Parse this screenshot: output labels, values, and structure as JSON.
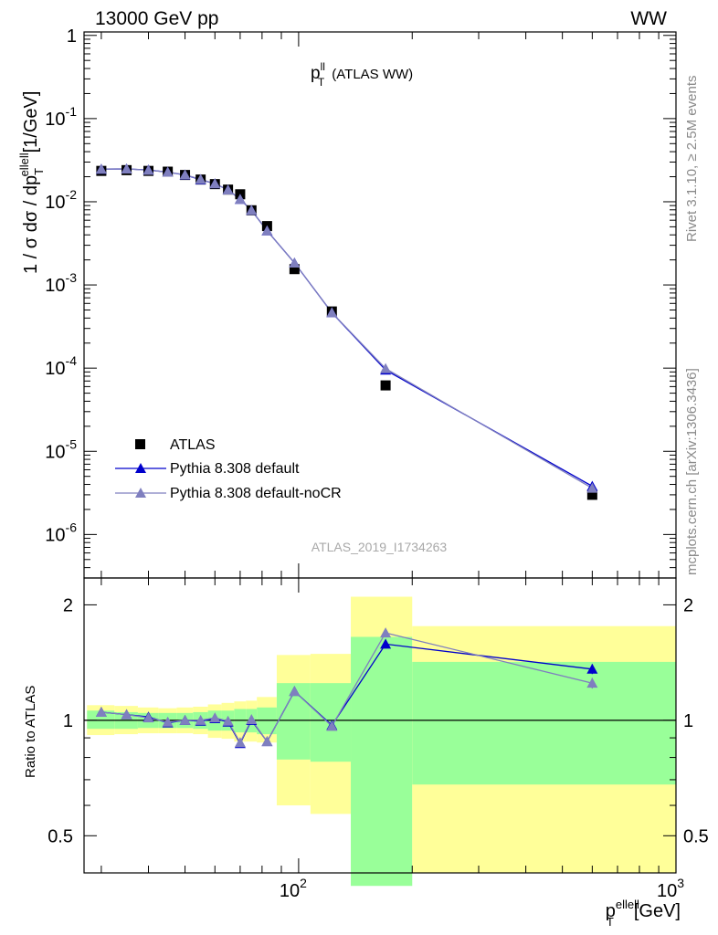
{
  "header": {
    "left": "13000 GeV pp",
    "right": "WW"
  },
  "side_labels": {
    "rivet": "Rivet 3.1.10, ≥ 2.5M events",
    "mcplots": "mcplots.cern.ch [arXiv:1306.3436]"
  },
  "analysis_id": "ATLAS_2019_I1734263",
  "colors": {
    "data": "#000000",
    "default": "#0000cc",
    "nocr": "#7f7fbf",
    "band_outer": "#ffff99",
    "band_inner": "#99ff99"
  },
  "chart_data": [
    {
      "type": "line",
      "title_main": "p",
      "title_sup": "ll",
      "title_sub": "T",
      "title_rest": "(ATLAS WW)",
      "ylabel": "1 / σ dσ / dp",
      "ylabel_sub": "T",
      "ylabel_sup": "ellell",
      "ylabel_unit": "[1/GeV]",
      "yscale": "log",
      "ylim": [
        3e-07,
        1.1
      ],
      "xscale": "log",
      "xlim": [
        27,
        1000
      ],
      "y_tick_labels": [
        "10^-6",
        "10^-5",
        "10^-4",
        "10^-3",
        "10^-2",
        "10^-1",
        "1"
      ],
      "legend_position": "bottom-left",
      "series": [
        {
          "name": "ATLAS",
          "marker": "square",
          "x": [
            30,
            35,
            40,
            45,
            50,
            55,
            60,
            65,
            70,
            75,
            82.5,
            97.5,
            122.5,
            170,
            600
          ],
          "y": [
            0.0235,
            0.024,
            0.0235,
            0.023,
            0.021,
            0.0185,
            0.0163,
            0.014,
            0.0123,
            0.0079,
            0.0051,
            0.00155,
            0.00048,
            6.2e-05,
            3e-06
          ]
        },
        {
          "name": "Pythia 8.308 default",
          "marker": "triangle",
          "x": [
            30,
            35,
            40,
            45,
            50,
            55,
            60,
            65,
            70,
            75,
            82.5,
            97.5,
            122.5,
            170,
            600
          ],
          "y": [
            0.0247,
            0.0248,
            0.0241,
            0.0227,
            0.021,
            0.0184,
            0.0165,
            0.0139,
            0.0107,
            0.0079,
            0.00448,
            0.00184,
            0.000465,
            9.5e-05,
            3.8e-06
          ]
        },
        {
          "name": "Pythia 8.308 default-noCR",
          "marker": "triangle",
          "x": [
            30,
            35,
            40,
            45,
            50,
            55,
            60,
            65,
            70,
            75,
            82.5,
            97.5,
            122.5,
            170,
            600
          ],
          "y": [
            0.0247,
            0.0248,
            0.024,
            0.0227,
            0.0211,
            0.0186,
            0.0165,
            0.0139,
            0.0107,
            0.0079,
            0.00448,
            0.00184,
            0.000465,
            9.9e-05,
            3.6e-06
          ]
        }
      ]
    },
    {
      "type": "line",
      "ylabel": "Ratio to ATLAS",
      "xlabel": "p",
      "xlabel_sub": "T",
      "xlabel_sup": "ellell",
      "xlabel_unit": "[GeV]",
      "yscale": "log",
      "ylim": [
        0.4,
        2.35
      ],
      "xscale": "log",
      "xlim": [
        27,
        1000
      ],
      "y_ticks": [
        0.5,
        1,
        2
      ],
      "y_tick_labels": [
        "0.5",
        "1",
        "2"
      ],
      "x_tick_labels": [
        "10^2",
        "10^3"
      ],
      "bins": [
        {
          "lo": 27.5,
          "hi": 32.5,
          "inner": [
            0.95,
            1.06
          ],
          "outer": [
            0.915,
            1.095
          ]
        },
        {
          "lo": 32.5,
          "hi": 37.5,
          "inner": [
            0.95,
            1.05
          ],
          "outer": [
            0.92,
            1.09
          ]
        },
        {
          "lo": 37.5,
          "hi": 42.5,
          "inner": [
            0.955,
            1.045
          ],
          "outer": [
            0.925,
            1.08
          ]
        },
        {
          "lo": 42.5,
          "hi": 47.5,
          "inner": [
            0.955,
            1.045
          ],
          "outer": [
            0.925,
            1.075
          ]
        },
        {
          "lo": 47.5,
          "hi": 52.5,
          "inner": [
            0.955,
            1.045
          ],
          "outer": [
            0.925,
            1.08
          ]
        },
        {
          "lo": 52.5,
          "hi": 57.5,
          "inner": [
            0.95,
            1.05
          ],
          "outer": [
            0.92,
            1.085
          ]
        },
        {
          "lo": 57.5,
          "hi": 62.5,
          "inner": [
            0.94,
            1.06
          ],
          "outer": [
            0.9,
            1.1
          ]
        },
        {
          "lo": 62.5,
          "hi": 67.5,
          "inner": [
            0.94,
            1.06
          ],
          "outer": [
            0.895,
            1.11
          ]
        },
        {
          "lo": 67.5,
          "hi": 72.5,
          "inner": [
            0.93,
            1.07
          ],
          "outer": [
            0.88,
            1.12
          ]
        },
        {
          "lo": 72.5,
          "hi": 77.5,
          "inner": [
            0.93,
            1.07
          ],
          "outer": [
            0.88,
            1.125
          ]
        },
        {
          "lo": 77.5,
          "hi": 87.5,
          "inner": [
            0.92,
            1.08
          ],
          "outer": [
            0.875,
            1.15
          ]
        },
        {
          "lo": 87.5,
          "hi": 107.5,
          "inner": [
            0.79,
            1.25
          ],
          "outer": [
            0.6,
            1.48
          ]
        },
        {
          "lo": 107.5,
          "hi": 137.5,
          "inner": [
            0.78,
            1.25
          ],
          "outer": [
            0.57,
            1.49
          ]
        },
        {
          "lo": 137.5,
          "hi": 200,
          "inner": [
            0.37,
            1.65
          ],
          "outer": [
            0.35,
            2.1
          ]
        },
        {
          "lo": 200,
          "hi": 1000,
          "inner": [
            0.68,
            1.42
          ],
          "outer": [
            0.4,
            1.76
          ]
        }
      ],
      "series": [
        {
          "name": "Pythia 8.308 default",
          "x": [
            30,
            35,
            40,
            45,
            50,
            55,
            60,
            65,
            70,
            75,
            82.5,
            97.5,
            122.5,
            170,
            600
          ],
          "y": [
            1.05,
            1.035,
            1.02,
            0.985,
            1.0,
            0.995,
            1.01,
            0.99,
            0.87,
            1.0,
            0.88,
            1.19,
            0.97,
            1.58,
            1.36
          ],
          "err": [
            0,
            0,
            0,
            0,
            0,
            0,
            0,
            0,
            0,
            0,
            0,
            0,
            0,
            0.04,
            0.04
          ]
        },
        {
          "name": "Pythia 8.308 default-noCR",
          "x": [
            30,
            35,
            40,
            45,
            50,
            55,
            60,
            65,
            70,
            75,
            82.5,
            97.5,
            122.5,
            170,
            600
          ],
          "y": [
            1.05,
            1.035,
            1.015,
            0.99,
            1.0,
            1.0,
            1.015,
            0.995,
            0.875,
            1.005,
            0.88,
            1.19,
            0.965,
            1.69,
            1.25
          ],
          "err": [
            0,
            0,
            0,
            0,
            0,
            0,
            0,
            0,
            0,
            0,
            0,
            0,
            0,
            0.04,
            0.04
          ]
        }
      ]
    }
  ]
}
